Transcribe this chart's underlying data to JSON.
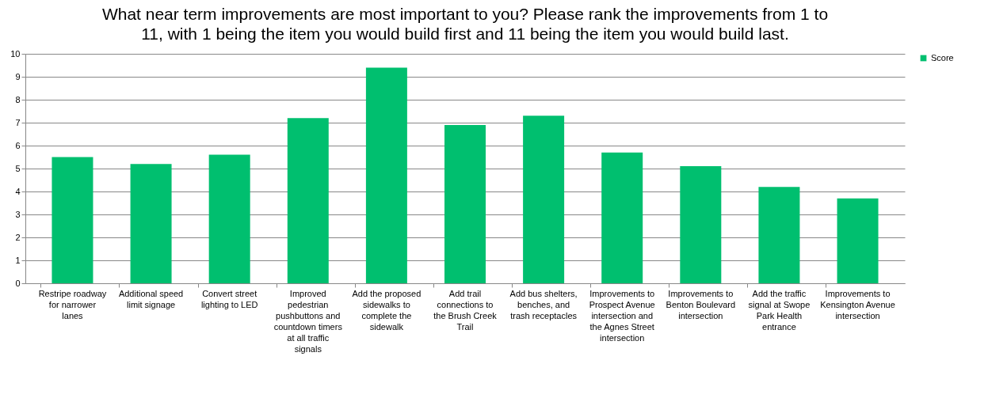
{
  "chart_data": {
    "type": "bar",
    "title": "What near term improvements are most important to you? Please rank the improvements from 1 to 11, with 1 being the item you would build first and 11 being the item you would build last.",
    "categories": [
      "Restripe roadway for narrower lanes",
      "Additional speed limit signage",
      "Convert street lighting to LED",
      "Improved pedestrian pushbuttons and countdown timers at all traffic signals",
      "Add the proposed sidewalks to complete the sidewalk",
      "Add trail connections to the Brush Creek Trail",
      "Add bus shelters, benches, and trash receptacles",
      "Improvements to Prospect Avenue intersection and the Agnes Street intersection",
      "Improvements to Benton Boulevard intersection",
      "Add the traffic signal at Swope Park Health entrance",
      "Improvements to Kensington Avenue intersection"
    ],
    "series": [
      {
        "name": "Score",
        "color": "#00bf6f",
        "values": [
          5.5,
          5.2,
          5.6,
          7.2,
          9.4,
          6.9,
          7.3,
          5.7,
          5.1,
          4.2,
          3.7
        ]
      }
    ],
    "ylim": [
      0,
      10
    ],
    "yticks": [
      0,
      1,
      2,
      3,
      4,
      5,
      6,
      7,
      8,
      9,
      10
    ],
    "grid": "y",
    "legend": "right"
  }
}
